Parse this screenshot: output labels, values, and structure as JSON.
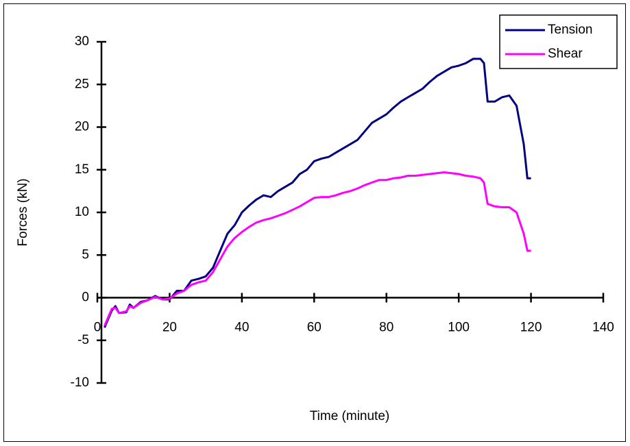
{
  "chart_data": {
    "type": "line",
    "x_label": "Time (minute)",
    "y_label": "Forces (kN)",
    "x": [
      2,
      4,
      5,
      6,
      8,
      9,
      10,
      12,
      14,
      16,
      18,
      20,
      22,
      24,
      26,
      28,
      30,
      32,
      34,
      36,
      38,
      40,
      42,
      44,
      46,
      48,
      50,
      52,
      54,
      56,
      58,
      60,
      62,
      64,
      66,
      68,
      70,
      72,
      74,
      76,
      78,
      80,
      82,
      84,
      86,
      88,
      90,
      92,
      94,
      96,
      98,
      100,
      102,
      104,
      106,
      107,
      108,
      110,
      112,
      114,
      116,
      118,
      119,
      120
    ],
    "series": [
      {
        "name": "Tension",
        "color": "#000080",
        "values": [
          -3.5,
          -1.5,
          -1,
          -1.8,
          -1.7,
          -0.8,
          -1.2,
          -0.5,
          -0.3,
          0.2,
          -0.2,
          -0.2,
          0.8,
          0.8,
          2,
          2.2,
          2.5,
          3.5,
          5.5,
          7.5,
          8.5,
          10,
          10.8,
          11.5,
          12,
          11.8,
          12.5,
          13,
          13.5,
          14.5,
          15,
          16,
          16.3,
          16.5,
          17,
          17.5,
          18,
          18.5,
          19.5,
          20.5,
          21,
          21.5,
          22.3,
          23,
          23.5,
          24,
          24.5,
          25.3,
          26,
          26.5,
          27,
          27.2,
          27.5,
          28,
          28,
          27.5,
          23,
          23,
          23.5,
          23.7,
          22.5,
          18,
          14,
          14
        ]
      },
      {
        "name": "Shear",
        "color": "#ff00ff",
        "values": [
          -3.3,
          -1.3,
          -1.2,
          -1.8,
          -1.6,
          -1,
          -1.2,
          -0.6,
          -0.3,
          0.1,
          -0.2,
          -0.1,
          0.5,
          0.8,
          1.5,
          1.8,
          2,
          3,
          4.5,
          6,
          7,
          7.7,
          8.3,
          8.8,
          9.1,
          9.3,
          9.6,
          9.9,
          10.3,
          10.7,
          11.2,
          11.7,
          11.8,
          11.8,
          12,
          12.3,
          12.5,
          12.8,
          13.2,
          13.5,
          13.8,
          13.8,
          14,
          14.1,
          14.3,
          14.3,
          14.4,
          14.5,
          14.6,
          14.7,
          14.6,
          14.5,
          14.3,
          14.2,
          14,
          13.5,
          11,
          10.7,
          10.6,
          10.6,
          10,
          7.5,
          5.5,
          5.5
        ]
      }
    ],
    "xlim": [
      0,
      140
    ],
    "xticks": [
      0,
      20,
      40,
      60,
      80,
      100,
      120,
      140
    ],
    "ylim": [
      -10,
      30
    ],
    "yticks": [
      -10,
      -5,
      0,
      5,
      10,
      15,
      20,
      25,
      30
    ],
    "grid": false,
    "legend": "upper right"
  }
}
